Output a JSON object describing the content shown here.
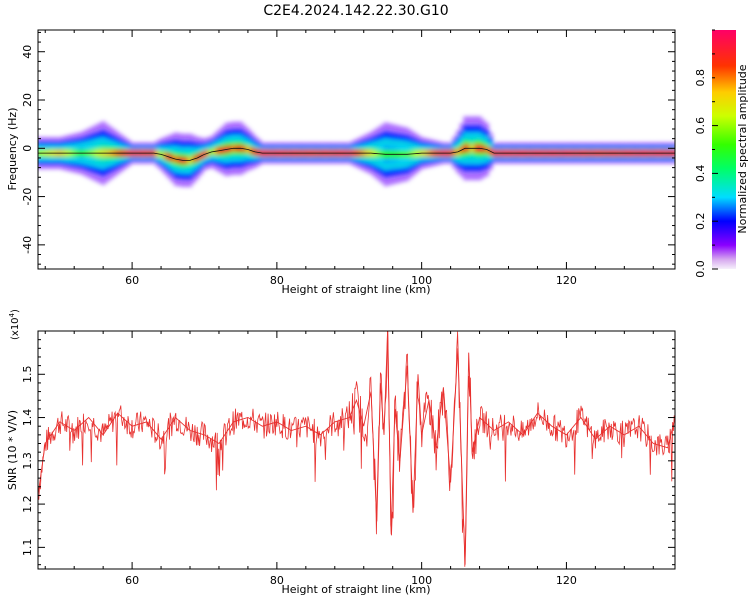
{
  "figure_title": "C2E4.2024.142.22.30.G10",
  "chart_data": [
    {
      "type": "heatmap",
      "xlabel": "Height of straight line (km)",
      "ylabel": "Frequency (Hz)",
      "xlim": [
        47,
        135
      ],
      "ylim": [
        -50,
        49
      ],
      "xticks": [
        60,
        80,
        100,
        120
      ],
      "xtick_labels": [
        "60",
        "80",
        "100",
        "120"
      ],
      "yticks": [
        -40,
        -20,
        0,
        20,
        40
      ],
      "ytick_labels": [
        "-40",
        "-20",
        "0",
        "20",
        "40"
      ],
      "colorbar": {
        "label": "Normalized spectral amplitude",
        "range": [
          0,
          1
        ],
        "ticks": [
          0.0,
          0.2,
          0.4,
          0.6,
          0.8
        ],
        "tick_labels": [
          "0.0",
          "0.2",
          "0.4",
          "0.6",
          "0.8"
        ]
      },
      "ridge": {
        "x": [
          47,
          50,
          53,
          56,
          60,
          63,
          64,
          65,
          66,
          67,
          68,
          69,
          70,
          71,
          72,
          73,
          74,
          75,
          76,
          77,
          78,
          80,
          85,
          90,
          93,
          95,
          98,
          100,
          103,
          104,
          105,
          106,
          107,
          108,
          109,
          110,
          115,
          120,
          125,
          130,
          134
        ],
        "y": [
          -2,
          -2,
          -2,
          -2,
          -2,
          -2,
          -2.5,
          -3.5,
          -4.5,
          -5,
          -5,
          -4,
          -2.5,
          -1.5,
          -1,
          -0.5,
          0,
          0,
          -0.5,
          -1.5,
          -2,
          -2,
          -2,
          -2,
          -2,
          -2.5,
          -2.5,
          -2,
          -2,
          -2,
          -1.5,
          0,
          0,
          0,
          -0.5,
          -2,
          -2,
          -2,
          -2,
          -2,
          -2
        ],
        "amplitude": [
          0.6,
          0.75,
          0.5,
          0.7,
          0.95,
          0.9,
          0.6,
          0.95,
          0.8,
          0.95,
          0.7,
          0.9,
          0.95,
          0.6,
          0.9,
          0.95,
          0.8,
          0.9,
          0.75,
          0.9,
          0.95,
          0.95,
          0.9,
          0.95,
          0.7,
          0.5,
          0.55,
          0.7,
          0.95,
          0.9,
          0.75,
          0.9,
          0.7,
          0.95,
          0.8,
          0.95,
          0.95,
          0.95,
          0.9,
          0.95,
          0.95
        ],
        "spread": [
          3,
          3,
          4,
          6,
          2,
          2,
          3,
          4,
          5,
          5,
          5,
          4,
          3,
          3,
          4,
          5,
          5,
          5,
          4,
          3,
          2,
          2,
          2,
          2,
          4,
          6,
          5,
          3,
          2,
          2,
          4,
          6,
          6,
          6,
          5,
          2,
          2,
          2,
          2,
          2,
          2
        ]
      }
    },
    {
      "type": "line",
      "xlabel": "Height of straight line (km)",
      "ylabel": "SNR (10 * V/V)",
      "y_multiplier": "(x10",
      "y_multiplier_exp": "4",
      "xlim": [
        47,
        135
      ],
      "ylim": [
        1.05,
        1.6
      ],
      "xticks": [
        60,
        80,
        100,
        120
      ],
      "xtick_labels": [
        "60",
        "80",
        "100",
        "120"
      ],
      "yticks": [
        1.1,
        1.2,
        1.3,
        1.4,
        1.5
      ],
      "ytick_labels": [
        "1.1",
        "1.2",
        "1.3",
        "1.4",
        "1.5"
      ],
      "series": [
        {
          "color": "#e8312f",
          "x": [
            47,
            48,
            50,
            52,
            54,
            56,
            58,
            60,
            62,
            64,
            66,
            68,
            70,
            72,
            74,
            76,
            78,
            80,
            82,
            84,
            86,
            88,
            90,
            91,
            92,
            93,
            93.8,
            94.3,
            94.8,
            95.3,
            95.8,
            96.3,
            97,
            98,
            98.8,
            99.5,
            100,
            101,
            102,
            103,
            104,
            105,
            105.5,
            106,
            106.5,
            107,
            108,
            110,
            112,
            114,
            116,
            118,
            120,
            122,
            124,
            126,
            128,
            130,
            132,
            134,
            135
          ],
          "y": [
            1.22,
            1.34,
            1.39,
            1.37,
            1.4,
            1.36,
            1.41,
            1.38,
            1.39,
            1.35,
            1.4,
            1.37,
            1.36,
            1.34,
            1.39,
            1.4,
            1.38,
            1.39,
            1.37,
            1.38,
            1.36,
            1.39,
            1.4,
            1.44,
            1.38,
            1.46,
            1.16,
            1.48,
            1.36,
            1.6,
            1.13,
            1.42,
            1.3,
            1.52,
            1.18,
            1.5,
            1.36,
            1.44,
            1.33,
            1.47,
            1.25,
            1.56,
            1.3,
            1.06,
            1.55,
            1.32,
            1.4,
            1.37,
            1.39,
            1.36,
            1.41,
            1.38,
            1.36,
            1.4,
            1.35,
            1.38,
            1.36,
            1.38,
            1.34,
            1.33,
            1.4
          ]
        }
      ]
    }
  ]
}
